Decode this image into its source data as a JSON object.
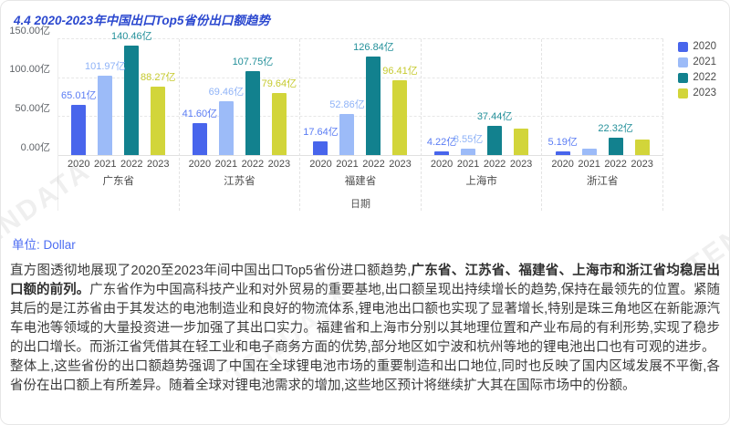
{
  "page": {
    "title": "4.4 2020-2023年中国出口Top5省份出口额趋势"
  },
  "watermark": "TENDATA",
  "chart_data": {
    "type": "bar",
    "title": "4.4 2020-2023年中国出口Top5省份出口额趋势",
    "xlabel": "日期",
    "ylabel": "",
    "unit": "亿",
    "ylim": [
      0,
      150
    ],
    "grid": true,
    "legend_position": "top-right",
    "yticks": [
      {
        "value": 150,
        "label": "150.00亿"
      },
      {
        "value": 100,
        "label": "100.00亿"
      },
      {
        "value": 50,
        "label": "50.00亿"
      },
      {
        "value": 0,
        "label": "0.00亿"
      }
    ],
    "categories": [
      "广东省",
      "江苏省",
      "福建省",
      "上海市",
      "浙江省"
    ],
    "series": [
      {
        "name": "2020",
        "color": "#4865ec",
        "label_color": "#5a7cf4",
        "values": [
          65.01,
          41.6,
          17.64,
          4.22,
          5.19
        ],
        "labels": [
          "65.01亿",
          "41.60亿",
          "17.64亿",
          "4.22亿",
          "5.19亿"
        ]
      },
      {
        "name": "2021",
        "color": "#9cbbf8",
        "label_color": "#8fb3f7",
        "values": [
          101.97,
          69.46,
          52.86,
          8.55,
          8.0
        ],
        "labels": [
          "101.97亿",
          "69.46亿",
          "52.86亿",
          "8.55亿",
          null
        ]
      },
      {
        "name": "2022",
        "color": "#12818e",
        "label_color": "#23909a",
        "values": [
          140.46,
          107.75,
          126.84,
          37.44,
          22.32
        ],
        "labels": [
          "140.46亿",
          "107.75亿",
          "126.84亿",
          "37.44亿",
          "22.32亿"
        ]
      },
      {
        "name": "2023",
        "color": "#d2d53a",
        "label_color": "#c6ca2f",
        "values": [
          88.27,
          79.64,
          96.41,
          33.5,
          20.0
        ],
        "labels": [
          "88.27亿",
          "79.64亿",
          "96.41亿",
          null,
          null
        ]
      }
    ]
  },
  "analysis": {
    "unit_label": "单位: Dollar",
    "paragraphs": [
      {
        "segments": [
          {
            "text": "直方图透彻地展现了2020至2023年间中国出口Top5省份进口额趋势,",
            "bold": false
          },
          {
            "text": "广东省、江苏省、福建省、上海市和浙江省均稳居出口额的前列。",
            "bold": true
          },
          {
            "text": "广东省作为中国高科技产业和对外贸易的重要基地,出口额呈现出持续增长的趋势,保持在最领先的位置。紧随其后的是江苏省由于其发达的电池制造业和良好的物流体系,锂电池出口额也实现了显著增长,特别是珠三角地区在新能源汽车电池等领域的大量投资进一步加强了其出口实力。福建省和上海市分别以其地理位置和产业布局的有利形势,实现了稳步的出口增长。而浙江省凭借其在轻工业和电子商务方面的优势,部分地区如宁波和杭州等地的锂电池出口也有可观的进步。",
            "bold": false
          }
        ]
      },
      {
        "segments": [
          {
            "text": "整体上,这些省份的出口额趋势强调了中国在全球锂电池市场的重要制造和出口地位,同时也反映了国内区域发展不平衡,各省份在出口额上有所差异。随着全球对锂电池需求的增加,这些地区预计将继续扩大其在国际市场中的份额。",
            "bold": false
          }
        ]
      }
    ]
  }
}
